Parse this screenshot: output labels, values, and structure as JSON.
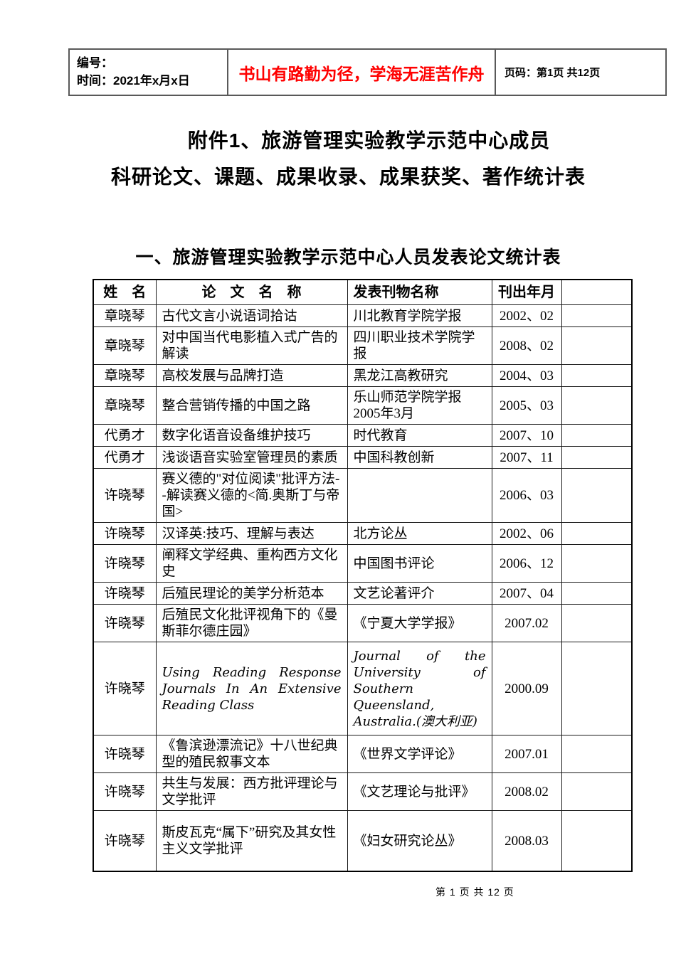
{
  "header_box": {
    "number_label": "编号：",
    "date_label": "时间：2021年x月x日",
    "motto": "书山有路勤为径，学海无涯苦作舟",
    "motto_color": "#ff0000",
    "page_label": "页码：第1页 共12页"
  },
  "titles": {
    "line1": "附件1、旅游管理实验教学示范中心成员",
    "line2": "科研论文、课题、成果收录、成果获奖、著作统计表",
    "section": "一、旅游管理实验教学示范中心人员发表论文统计表"
  },
  "table": {
    "headers": [
      "姓　名",
      "论　文　名　称",
      "发表刊物名称",
      "刊出年月",
      ""
    ],
    "rows": [
      {
        "name": "章晓琴",
        "title": "古代文言小说语词拾诂",
        "journal": "川北教育学院学报",
        "date": "2002、02"
      },
      {
        "name": "章晓琴",
        "title": "对中国当代电影植入式广告的解读",
        "journal": "四川职业技术学院学报",
        "date": "2008、02"
      },
      {
        "name": "章晓琴",
        "title": "高校发展与品牌打造",
        "journal": "黑龙江高教研究",
        "date": "2004、03"
      },
      {
        "name": "章晓琴",
        "title": "整合营销传播的中国之路",
        "journal": "乐山师范学院学报2005年3月",
        "date": "2005、03"
      },
      {
        "name": "代勇才",
        "title": "数字化语音设备维护技巧",
        "journal": "时代教育",
        "date": "2007、10"
      },
      {
        "name": "代勇才",
        "title": "浅谈语音实验室管理员的素质",
        "journal": "中国科教创新",
        "date": "2007、11"
      },
      {
        "name": "许晓琴",
        "title": "赛义德的\"对位阅读\"批评方法--解读赛义德的<简.奥斯丁与帝国>",
        "journal": "",
        "date": "2006、03"
      },
      {
        "name": "许晓琴",
        "title": "汉译英:技巧、理解与表达",
        "journal": "北方论丛",
        "date": "2002、06"
      },
      {
        "name": "许晓琴",
        "title": "阐释文学经典、重构西方文化史",
        "journal": "中国图书评论",
        "date": "2006、12"
      },
      {
        "name": "许晓琴",
        "title": "后殖民理论的美学分析范本",
        "journal": "文艺论著评介",
        "date": "2007、04"
      },
      {
        "name": "许晓琴",
        "title": "后殖民文化批评视角下的《曼斯菲尔德庄园》",
        "journal": "《宁夏大学学报》",
        "date": "2007.02"
      },
      {
        "name": "许晓琴",
        "title": "Using Reading Response Journals In An Extensive Reading Class",
        "journal": "Journal of the University of Southern Queensland, Australia.(澳大利亚)",
        "date": "2000.09"
      },
      {
        "name": "许晓琴",
        "title": "《鲁滨逊漂流记》十八世纪典型的殖民叙事文本",
        "journal": "《世界文学评论》",
        "date": "2007.01"
      },
      {
        "name": "许晓琴",
        "title": "共生与发展：西方批评理论与文学批评",
        "journal": "《文艺理论与批评》",
        "date": "2008.02"
      },
      {
        "name": "许晓琴",
        "title": "斯皮瓦克“属下”研究及其女性主义文学批评",
        "journal": "《妇女研究论丛》",
        "date": "2008.03"
      }
    ]
  },
  "footer": {
    "text": "第 1 页 共 12 页"
  }
}
